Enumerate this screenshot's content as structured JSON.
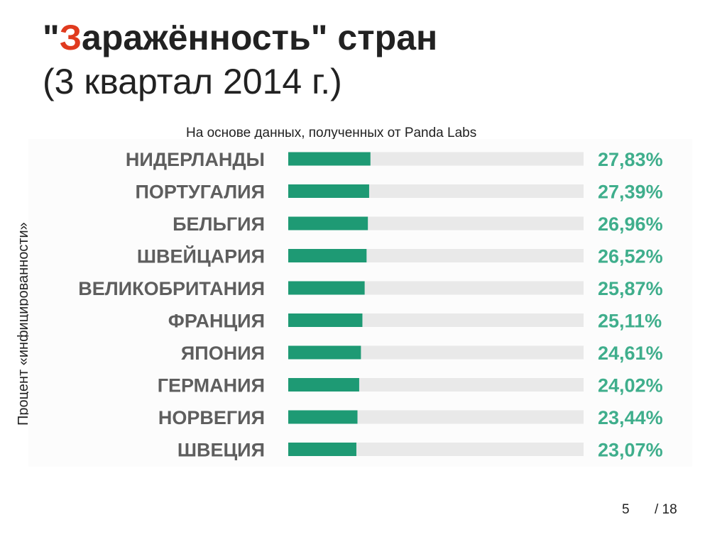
{
  "slide": {
    "title_open": "\"",
    "title_accent": "З",
    "title_rest": "аражённость\" стран",
    "title_line2": "(3 квартал 2014 г.)",
    "subtitle": "На основе данных, полученных от Panda Labs",
    "ylabel": "Процент «инфицированности»",
    "page_number": "5",
    "page_total": "/ 18"
  },
  "colors": {
    "accent": "#e03a1e",
    "bar_fill": "#1e9a74",
    "bar_track": "#e9e9e9",
    "value_text": "#3fae8c",
    "category_text": "#5e5e5e"
  },
  "chart_data": {
    "type": "bar",
    "orientation": "horizontal",
    "categories": [
      "НИДЕРЛАНДЫ",
      "ПОРТУГАЛИЯ",
      "БЕЛЬГИЯ",
      "ШВЕЙЦАРИЯ",
      "ВЕЛИКОБРИТАНИЯ",
      "ФРАНЦИЯ",
      "ЯПОНИЯ",
      "ГЕРМАНИЯ",
      "НОРВЕГИЯ",
      "ШВЕЦИЯ"
    ],
    "values": [
      27.83,
      27.39,
      26.96,
      26.52,
      25.87,
      25.11,
      24.61,
      24.02,
      23.44,
      23.07
    ],
    "value_labels": [
      "27,83%",
      "27,39%",
      "26,96%",
      "26,52%",
      "25,87%",
      "25,11%",
      "24,61%",
      "24,02%",
      "23,44%",
      "23,07%"
    ],
    "xlim": [
      0,
      100
    ],
    "grid": false
  }
}
